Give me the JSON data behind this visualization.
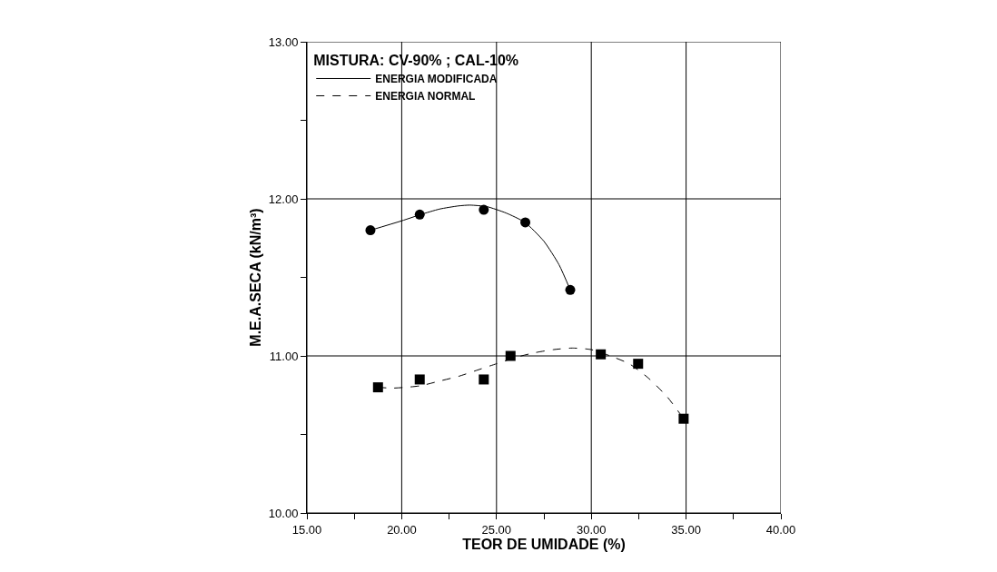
{
  "chart_data": {
    "type": "scatter",
    "xlabel": "TEOR DE UMIDADE (%)",
    "ylabel": "M.E.A.SECA (kN/m³)",
    "legend_title": "MISTURA: CV-90% ; CAL-10%",
    "legend": "top left",
    "grid": true,
    "xlim": [
      15,
      40
    ],
    "ylim": [
      10,
      13
    ],
    "xticks": [
      {
        "value": 15,
        "label": "15.00"
      },
      {
        "value": 17.5,
        "label": null
      },
      {
        "value": 20,
        "label": "20.00"
      },
      {
        "value": 22.5,
        "label": null
      },
      {
        "value": 25,
        "label": "25.00"
      },
      {
        "value": 27.5,
        "label": null
      },
      {
        "value": 30,
        "label": "30.00"
      },
      {
        "value": 32.5,
        "label": null
      },
      {
        "value": 35,
        "label": "35.00"
      },
      {
        "value": 37.5,
        "label": null
      },
      {
        "value": 40,
        "label": "40.00"
      }
    ],
    "yticks": [
      {
        "value": 10,
        "label": "10.00"
      },
      {
        "value": 10.5,
        "label": null
      },
      {
        "value": 11,
        "label": "11.00"
      },
      {
        "value": 11.5,
        "label": null
      },
      {
        "value": 12,
        "label": "12.00"
      },
      {
        "value": 12.5,
        "label": null
      },
      {
        "value": 13,
        "label": "13.00"
      }
    ],
    "series": [
      {
        "type": "scatter",
        "marker": "circle",
        "color": "#000000",
        "x": [
          18.35,
          20.95,
          24.33,
          26.52,
          28.89
        ],
        "values": [
          11.8,
          11.9,
          11.93,
          11.85,
          11.42
        ]
      },
      {
        "type": "scatter",
        "marker": "square",
        "color": "#000000",
        "x": [
          18.75,
          20.95,
          24.33,
          25.74,
          30.5,
          32.47,
          34.87
        ],
        "values": [
          10.8,
          10.85,
          10.85,
          11.0,
          11.01,
          10.95,
          10.6
        ]
      },
      {
        "type": "line",
        "name": "ENERGIA MODIFICADA",
        "line_style": "solid",
        "color": "#000000",
        "x": [
          18.35,
          20,
          21,
          22,
          23,
          23.6,
          24.5,
          25.5,
          26.5,
          27.5,
          28.3,
          28.89
        ],
        "values": [
          11.8,
          11.86,
          11.9,
          11.935,
          11.955,
          11.96,
          11.95,
          11.91,
          11.85,
          11.73,
          11.58,
          11.42
        ]
      },
      {
        "type": "line",
        "name": "ENERGIA NORMAL",
        "line_style": "dashed",
        "color": "#000000",
        "x": [
          18.75,
          19.5,
          20.2,
          21,
          22,
          23,
          24,
          25,
          26,
          27,
          28,
          29,
          30,
          31,
          32,
          33,
          34,
          34.87
        ],
        "values": [
          10.8,
          10.795,
          10.8,
          10.81,
          10.84,
          10.87,
          10.91,
          10.95,
          10.99,
          11.02,
          11.04,
          11.05,
          11.04,
          11.0,
          10.95,
          10.86,
          10.74,
          10.6
        ]
      }
    ]
  }
}
